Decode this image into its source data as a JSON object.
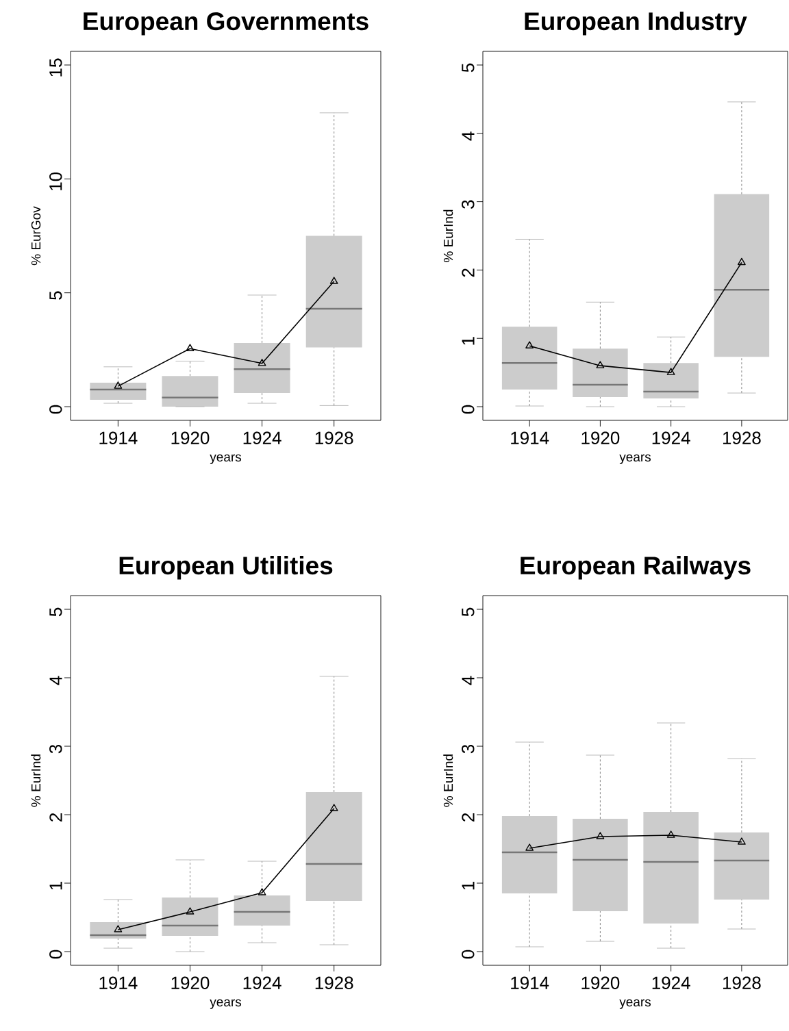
{
  "chart_data": [
    {
      "type": "box",
      "title": "European Governments",
      "xlabel": "years",
      "ylabel": "% EurGov",
      "categories": [
        "1914",
        "1920",
        "1924",
        "1928"
      ],
      "ylim": [
        -0.6,
        15.6
      ],
      "yticks": [
        0,
        5,
        10,
        15
      ],
      "grid": false,
      "series": [
        {
          "type": "box",
          "color": "#cccccc",
          "boxes": [
            {
              "low": 0.15,
              "q1": 0.3,
              "median": 0.75,
              "q3": 1.05,
              "high": 1.75
            },
            {
              "low": 0,
              "q1": 0,
              "median": 0.4,
              "q3": 1.35,
              "high": 2.0
            },
            {
              "low": 0.15,
              "q1": 0.6,
              "median": 1.65,
              "q3": 2.8,
              "high": 4.9
            },
            {
              "low": 0.05,
              "q1": 2.6,
              "median": 4.3,
              "q3": 7.5,
              "high": 12.9
            }
          ]
        },
        {
          "type": "line",
          "color": "#000000",
          "marker": "triangle",
          "values": [
            0.9,
            2.55,
            1.9,
            5.5
          ]
        }
      ]
    },
    {
      "type": "box",
      "title": "European Industry",
      "xlabel": "years",
      "ylabel": "% EurInd",
      "categories": [
        "1914",
        "1920",
        "1924",
        "1928"
      ],
      "ylim": [
        -0.2,
        5.2
      ],
      "yticks": [
        0,
        1,
        2,
        3,
        4,
        5
      ],
      "grid": false,
      "series": [
        {
          "type": "box",
          "color": "#cccccc",
          "boxes": [
            {
              "low": 0.01,
              "q1": 0.25,
              "median": 0.64,
              "q3": 1.17,
              "high": 2.45
            },
            {
              "low": 0,
              "q1": 0.14,
              "median": 0.32,
              "q3": 0.85,
              "high": 1.53
            },
            {
              "low": 0,
              "q1": 0.12,
              "median": 0.22,
              "q3": 0.64,
              "high": 1.02
            },
            {
              "low": 0.2,
              "q1": 0.73,
              "median": 1.71,
              "q3": 3.11,
              "high": 4.46
            }
          ]
        },
        {
          "type": "line",
          "color": "#000000",
          "marker": "triangle",
          "values": [
            0.89,
            0.6,
            0.5,
            2.11
          ]
        }
      ]
    },
    {
      "type": "box",
      "title": "European Utilities",
      "xlabel": "years",
      "ylabel": "% EurInd",
      "categories": [
        "1914",
        "1920",
        "1924",
        "1928"
      ],
      "ylim": [
        -0.2,
        5.2
      ],
      "yticks": [
        0,
        1,
        2,
        3,
        4,
        5
      ],
      "grid": false,
      "series": [
        {
          "type": "box",
          "color": "#cccccc",
          "boxes": [
            {
              "low": 0.05,
              "q1": 0.19,
              "median": 0.24,
              "q3": 0.43,
              "high": 0.76
            },
            {
              "low": 0,
              "q1": 0.23,
              "median": 0.38,
              "q3": 0.79,
              "high": 1.34
            },
            {
              "low": 0.13,
              "q1": 0.38,
              "median": 0.58,
              "q3": 0.82,
              "high": 1.32
            },
            {
              "low": 0.1,
              "q1": 0.74,
              "median": 1.28,
              "q3": 2.33,
              "high": 4.02
            }
          ]
        },
        {
          "type": "line",
          "color": "#000000",
          "marker": "triangle",
          "values": [
            0.32,
            0.58,
            0.86,
            2.09
          ]
        }
      ]
    },
    {
      "type": "box",
      "title": "European Railways",
      "xlabel": "years",
      "ylabel": "% EurInd",
      "categories": [
        "1914",
        "1920",
        "1924",
        "1928"
      ],
      "ylim": [
        -0.2,
        5.2
      ],
      "yticks": [
        0,
        1,
        2,
        3,
        4,
        5
      ],
      "grid": false,
      "series": [
        {
          "type": "box",
          "color": "#cccccc",
          "boxes": [
            {
              "low": 0.07,
              "q1": 0.85,
              "median": 1.45,
              "q3": 1.98,
              "high": 3.06
            },
            {
              "low": 0.15,
              "q1": 0.59,
              "median": 1.34,
              "q3": 1.94,
              "high": 2.87
            },
            {
              "low": 0.05,
              "q1": 0.41,
              "median": 1.31,
              "q3": 2.04,
              "high": 3.34
            },
            {
              "low": 0.33,
              "q1": 0.76,
              "median": 1.33,
              "q3": 1.74,
              "high": 2.82
            }
          ]
        },
        {
          "type": "line",
          "color": "#000000",
          "marker": "triangle",
          "values": [
            1.51,
            1.68,
            1.7,
            1.6
          ]
        }
      ]
    }
  ]
}
